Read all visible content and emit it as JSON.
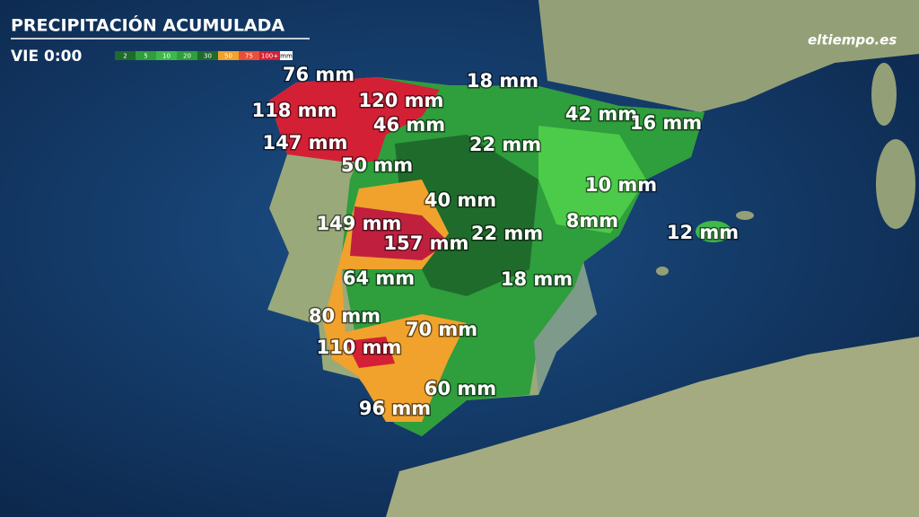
{
  "header": {
    "title": "PRECIPITACIÓN ACUMULADA",
    "time": "VIE 0:00",
    "logo": "eltiempo.es"
  },
  "legend": {
    "labels": [
      "2",
      "5",
      "10",
      "20",
      "30",
      "50",
      "75",
      "100+"
    ],
    "unit": "mm"
  },
  "map": {
    "labels": [
      "76 mm",
      "118 mm",
      "147 mm",
      "120 mm",
      "46 mm",
      "50 mm",
      "18 mm",
      "42 mm",
      "16 mm",
      "22 mm",
      "10 mm",
      "40 mm",
      "149 mm",
      "157 mm",
      "22 mm",
      "8mm",
      "12 mm",
      "64 mm",
      "18 mm",
      "80 mm",
      "70 mm",
      "110 mm",
      "60 mm",
      "96 mm"
    ]
  }
}
